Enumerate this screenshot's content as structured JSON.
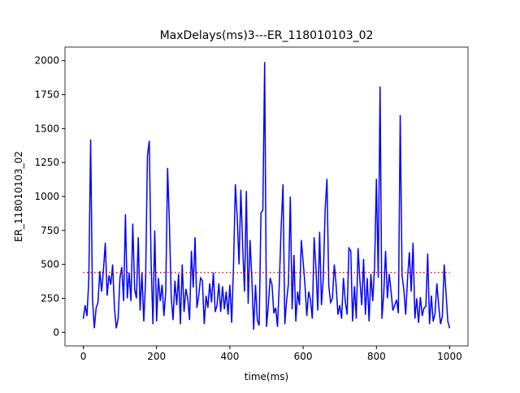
{
  "chart_data": {
    "type": "line",
    "title": "MaxDelays(ms)3---ER_118010103_02",
    "xlabel": "time(ms)",
    "ylabel": "ER_118010103_02",
    "x": [
      0,
      5,
      10,
      15,
      20,
      25,
      30,
      35,
      40,
      45,
      50,
      55,
      60,
      65,
      70,
      75,
      80,
      85,
      90,
      95,
      100,
      105,
      110,
      115,
      120,
      125,
      130,
      135,
      140,
      145,
      150,
      155,
      160,
      165,
      170,
      175,
      180,
      185,
      190,
      195,
      200,
      205,
      210,
      215,
      220,
      225,
      230,
      235,
      240,
      245,
      250,
      255,
      260,
      265,
      270,
      275,
      280,
      285,
      290,
      295,
      300,
      305,
      310,
      315,
      320,
      325,
      330,
      335,
      340,
      345,
      350,
      355,
      360,
      365,
      370,
      375,
      380,
      385,
      390,
      395,
      400,
      405,
      410,
      415,
      420,
      425,
      430,
      435,
      440,
      445,
      450,
      455,
      460,
      465,
      470,
      475,
      480,
      485,
      490,
      495,
      500,
      505,
      510,
      515,
      520,
      525,
      530,
      535,
      540,
      545,
      550,
      555,
      560,
      565,
      570,
      575,
      580,
      585,
      590,
      595,
      600,
      605,
      610,
      615,
      620,
      625,
      630,
      635,
      640,
      645,
      650,
      655,
      660,
      665,
      670,
      675,
      680,
      685,
      690,
      695,
      700,
      705,
      710,
      715,
      720,
      725,
      730,
      735,
      740,
      745,
      750,
      755,
      760,
      765,
      770,
      775,
      780,
      785,
      790,
      795,
      800,
      805,
      810,
      815,
      820,
      825,
      830,
      835,
      840,
      845,
      850,
      855,
      860,
      865,
      870,
      875,
      880,
      885,
      890,
      895,
      900,
      905,
      910,
      915,
      920,
      925,
      930,
      935,
      940,
      945,
      950,
      955,
      960,
      965,
      970,
      975,
      980,
      985,
      990,
      995,
      1000
    ],
    "series": [
      {
        "color": "#0000ff",
        "values": [
          100,
          200,
          120,
          390,
          1420,
          250,
          30,
          180,
          220,
          450,
          300,
          460,
          660,
          270,
          420,
          350,
          500,
          180,
          30,
          100,
          400,
          480,
          230,
          870,
          250,
          440,
          230,
          800,
          320,
          250,
          700,
          160,
          440,
          80,
          380,
          1300,
          1410,
          520,
          60,
          750,
          80,
          400,
          230,
          350,
          120,
          300,
          1210,
          800,
          260,
          90,
          380,
          200,
          430,
          60,
          500,
          150,
          320,
          250,
          90,
          600,
          330,
          700,
          180,
          270,
          400,
          380,
          60,
          270,
          180,
          360,
          220,
          440,
          150,
          200,
          360,
          150,
          340,
          170,
          300,
          130,
          350,
          70,
          490,
          1090,
          850,
          500,
          1050,
          630,
          300,
          1040,
          210,
          680,
          400,
          20,
          350,
          90,
          50,
          880,
          900,
          1990,
          40,
          200,
          400,
          350,
          140,
          180,
          40,
          360,
          770,
          1090,
          60,
          240,
          360,
          1000,
          170,
          570,
          80,
          300,
          200,
          680,
          520,
          350,
          120,
          300,
          240,
          100,
          700,
          470,
          160,
          740,
          200,
          400,
          900,
          1130,
          340,
          220,
          250,
          500,
          350,
          130,
          200,
          100,
          400,
          230,
          130,
          620,
          600,
          80,
          340,
          100,
          620,
          380,
          200,
          540,
          130,
          400,
          80,
          430,
          230,
          480,
          1130,
          400,
          1810,
          100,
          280,
          600,
          250,
          430,
          300,
          160,
          200,
          240,
          140,
          1600,
          420,
          310,
          130,
          400,
          590,
          300,
          660,
          100,
          250,
          70,
          260,
          120,
          180,
          190,
          580,
          60,
          270,
          80,
          140,
          360,
          200,
          60,
          120,
          500,
          290,
          80,
          30
        ]
      }
    ],
    "reference_line": {
      "x": [
        0,
        1000
      ],
      "values": [
        440,
        440
      ],
      "color": "#ff0000"
    },
    "xlim": [
      -50,
      1050
    ],
    "ylim": [
      -100,
      2100
    ],
    "xticks": [
      0,
      200,
      400,
      600,
      800,
      1000
    ],
    "yticks": [
      0,
      250,
      500,
      750,
      1000,
      1250,
      1500,
      1750,
      2000
    ]
  }
}
